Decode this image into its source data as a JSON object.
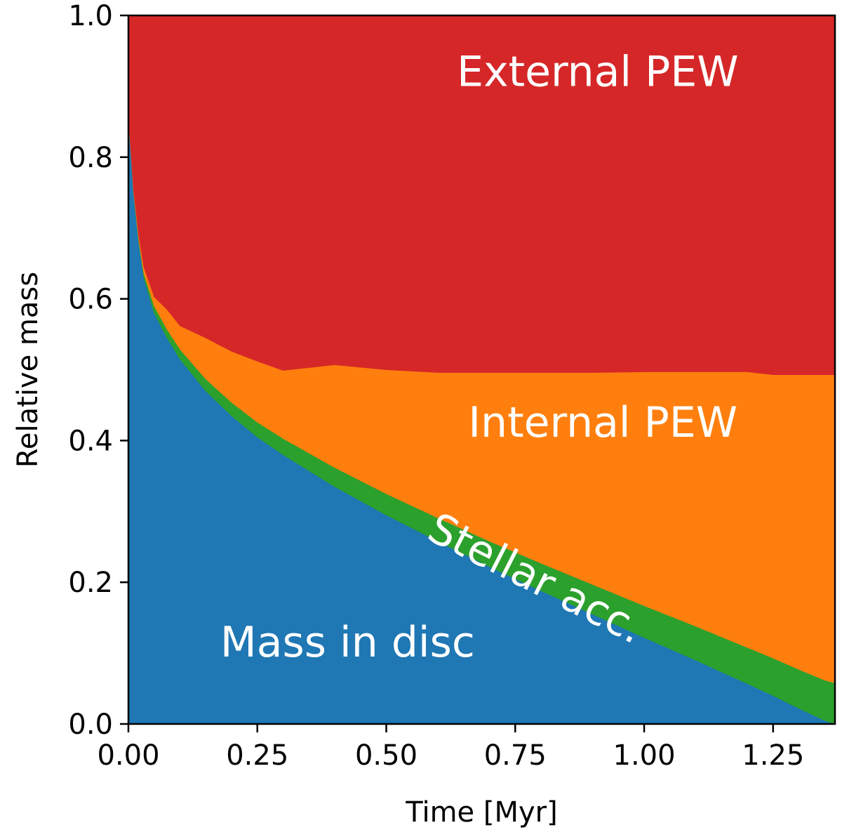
{
  "chart_data": {
    "type": "area",
    "stacked": true,
    "xlabel": "Time [Myr]",
    "ylabel": "Relative mass",
    "xlim": [
      0,
      1.37
    ],
    "ylim": [
      0,
      1.0
    ],
    "xticks": [
      0.0,
      0.25,
      0.5,
      0.75,
      1.0,
      1.25
    ],
    "xtick_labels": [
      "0.00",
      "0.25",
      "0.50",
      "0.75",
      "1.00",
      "1.25"
    ],
    "yticks": [
      0.0,
      0.2,
      0.4,
      0.6,
      0.8,
      1.0
    ],
    "ytick_labels": [
      "0.0",
      "0.2",
      "0.4",
      "0.6",
      "0.8",
      "1.0"
    ],
    "grid": false,
    "x": [
      0.0,
      0.01,
      0.02,
      0.03,
      0.05,
      0.075,
      0.1,
      0.15,
      0.2,
      0.25,
      0.3,
      0.4,
      0.5,
      0.6,
      0.7,
      0.8,
      0.9,
      1.0,
      1.1,
      1.2,
      1.25,
      1.3,
      1.35,
      1.37
    ],
    "series": [
      {
        "name": "Mass in disc",
        "color": "#1f77b4",
        "values": [
          0.86,
          0.75,
          0.68,
          0.63,
          0.58,
          0.545,
          0.515,
          0.47,
          0.435,
          0.405,
          0.38,
          0.335,
          0.295,
          0.258,
          0.222,
          0.188,
          0.155,
          0.122,
          0.09,
          0.057,
          0.04,
          0.022,
          0.005,
          0.0
        ]
      },
      {
        "name": "Stellar acc.",
        "color": "#2ca02c",
        "values": [
          0.0,
          0.002,
          0.004,
          0.006,
          0.01,
          0.012,
          0.014,
          0.017,
          0.019,
          0.021,
          0.023,
          0.027,
          0.03,
          0.033,
          0.036,
          0.039,
          0.042,
          0.045,
          0.048,
          0.051,
          0.053,
          0.055,
          0.057,
          0.058
        ]
      },
      {
        "name": "Internal PEW",
        "color": "#ff7f0e",
        "values": [
          0.0,
          0.003,
          0.006,
          0.009,
          0.013,
          0.028,
          0.033,
          0.058,
          0.072,
          0.086,
          0.096,
          0.145,
          0.175,
          0.205,
          0.238,
          0.269,
          0.299,
          0.33,
          0.359,
          0.389,
          0.4,
          0.416,
          0.431,
          0.435
        ]
      },
      {
        "name": "External PEW",
        "color": "#d62728",
        "values": [
          0.14,
          0.245,
          0.31,
          0.355,
          0.397,
          0.415,
          0.438,
          0.455,
          0.474,
          0.488,
          0.501,
          0.493,
          0.5,
          0.504,
          0.504,
          0.504,
          0.504,
          0.503,
          0.503,
          0.503,
          0.507,
          0.507,
          0.507,
          0.507
        ]
      }
    ],
    "annotations": [
      {
        "text": "External PEW",
        "x": 0.91,
        "y": 0.92,
        "rotation": 0
      },
      {
        "text": "Internal PEW",
        "x": 0.92,
        "y": 0.425,
        "rotation": 0
      },
      {
        "text": "Stellar acc.",
        "x": 0.79,
        "y": 0.205,
        "rotation": 27
      },
      {
        "text": "Mass in disc",
        "x": 0.425,
        "y": 0.115,
        "rotation": 0
      }
    ]
  }
}
